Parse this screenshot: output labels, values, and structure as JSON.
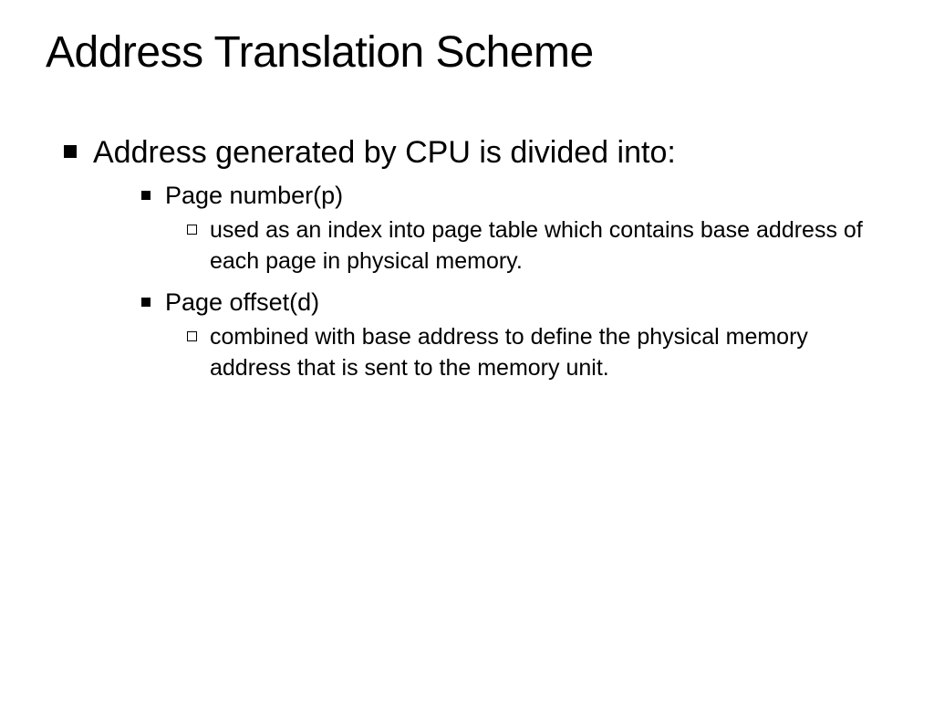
{
  "title": "Address Translation Scheme",
  "colors": {
    "background": "#ffffff",
    "text": "#000000",
    "bullet_fill": "#000000"
  },
  "typography": {
    "title_fontsize": 48,
    "level1_fontsize": 34,
    "level2_fontsize": 27,
    "level3_fontsize": 25,
    "font_family": "Arial, Helvetica, sans-serif"
  },
  "bullets": {
    "level1": {
      "shape": "filled-square",
      "size": 14,
      "color": "#000000"
    },
    "level2": {
      "shape": "filled-square",
      "size": 10,
      "color": "#000000"
    },
    "level3": {
      "shape": "hollow-square",
      "size": 11,
      "border_color": "#000000"
    }
  },
  "content": {
    "level1_text": "Address generated by CPU is divided into:",
    "item1": {
      "label": "Page number(p)",
      "detail": "used as an index into  page table which contains base address of each page in physical memory."
    },
    "item2": {
      "label": "Page offset(d)",
      "detail": "combined with base address to define the physical memory address that is sent to the memory unit."
    }
  }
}
